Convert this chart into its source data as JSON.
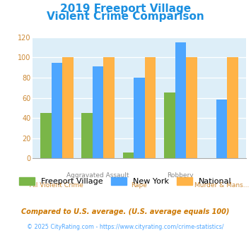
{
  "title_line1": "2019 Freeport Village",
  "title_line2": "Violent Crime Comparison",
  "categories": [
    "All Violent Crime",
    "Aggravated Assault",
    "Rape",
    "Robbery",
    "Murder & Mans..."
  ],
  "x_labels_top": [
    "",
    "Aggravated Assault",
    "",
    "Robbery",
    ""
  ],
  "x_labels_bottom": [
    "All Violent Crime",
    "",
    "Rape",
    "",
    "Murder & Mans..."
  ],
  "freeport_values": [
    45,
    45,
    6,
    65,
    0
  ],
  "newyork_values": [
    95,
    91,
    80,
    115,
    58
  ],
  "national_values": [
    100,
    100,
    100,
    100,
    100
  ],
  "freeport_color": "#7ab648",
  "newyork_color": "#4da6ff",
  "national_color": "#ffb347",
  "ylim": [
    0,
    120
  ],
  "yticks": [
    0,
    20,
    40,
    60,
    80,
    100,
    120
  ],
  "title_color": "#1a8fe0",
  "xlabel_top_color": "#888888",
  "xlabel_bottom_color": "#cc8833",
  "bg_color": "#ddeef8",
  "legend_labels": [
    "Freeport Village",
    "New York",
    "National"
  ],
  "footnote1": "Compared to U.S. average. (U.S. average equals 100)",
  "footnote2": "© 2025 CityRating.com - https://www.cityrating.com/crime-statistics/",
  "footnote1_color": "#cc7700",
  "footnote2_color": "#4da6ff",
  "ytick_color": "#cc8833"
}
